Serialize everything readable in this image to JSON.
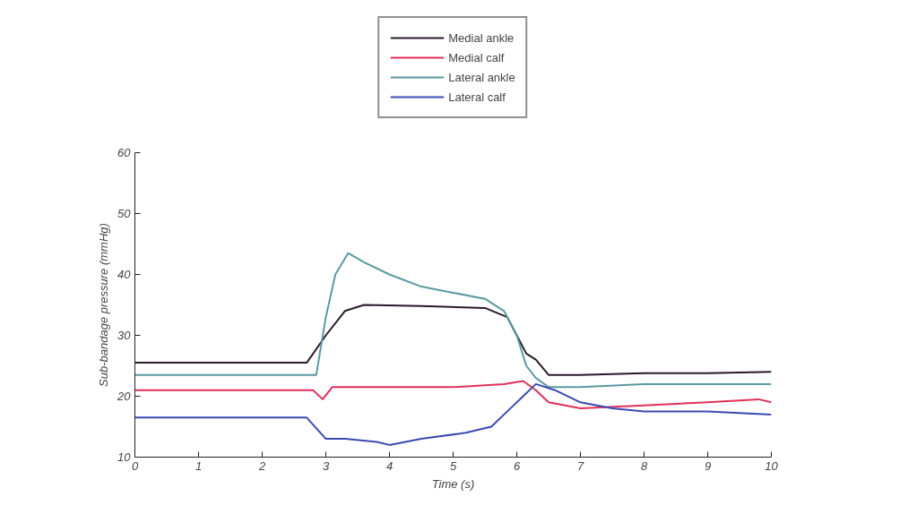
{
  "chart_data": {
    "type": "line",
    "xlabel": "Time (s)",
    "ylabel": "Sub-bandage pressure (mmHg)",
    "xlim": [
      0,
      10
    ],
    "ylim": [
      10,
      60
    ],
    "xticks": [
      0,
      1,
      2,
      3,
      4,
      5,
      6,
      7,
      8,
      9,
      10
    ],
    "yticks": [
      10,
      20,
      30,
      40,
      50,
      60
    ],
    "grid": false,
    "legend": "top",
    "line_style": "solid",
    "marker": "none",
    "series": [
      {
        "name": "Medial ankle",
        "color": "#2a1a2a",
        "x": [
          0,
          1,
          2,
          2.7,
          3.0,
          3.3,
          3.6,
          4.5,
          5.5,
          5.85,
          6.0,
          6.15,
          6.3,
          6.5,
          7,
          8,
          9,
          10
        ],
        "values": [
          25.5,
          25.5,
          25.5,
          25.5,
          30,
          34,
          35,
          34.8,
          34.5,
          33,
          30,
          27,
          26,
          23.5,
          23.5,
          23.8,
          23.8,
          24
        ]
      },
      {
        "name": "Medial calf",
        "color": "#e0305a",
        "x": [
          0,
          1,
          2,
          2.8,
          2.95,
          3.1,
          4,
          5,
          5.8,
          6.1,
          6.3,
          6.5,
          7,
          8,
          9,
          9.8,
          10
        ],
        "values": [
          21,
          21,
          21,
          21,
          19.5,
          21.5,
          21.5,
          21.5,
          22,
          22.5,
          21,
          19,
          18,
          18.5,
          19,
          19.5,
          19
        ]
      },
      {
        "name": "Lateral ankle",
        "color": "#5a9aa0",
        "x": [
          0,
          1,
          2,
          2.85,
          3.0,
          3.15,
          3.35,
          3.6,
          4.0,
          4.5,
          5.0,
          5.5,
          5.8,
          6.0,
          6.15,
          6.3,
          6.5,
          7,
          8,
          9,
          10
        ],
        "values": [
          23.5,
          23.5,
          23.5,
          23.5,
          33,
          40,
          43.5,
          42,
          40,
          38,
          37,
          36,
          34,
          30,
          25,
          23,
          21.5,
          21.5,
          22,
          22,
          22
        ]
      },
      {
        "name": "Lateral calf",
        "color": "#3a4ab0",
        "x": [
          0,
          1,
          2,
          2.7,
          3.0,
          3.3,
          3.8,
          4.0,
          4.5,
          5.2,
          5.6,
          5.9,
          6.1,
          6.3,
          6.6,
          7,
          7.5,
          8,
          9,
          10
        ],
        "values": [
          16.5,
          16.5,
          16.5,
          16.5,
          13,
          13,
          12.5,
          12,
          13,
          14,
          15,
          18,
          20,
          22,
          21,
          19,
          18,
          17.5,
          17.5,
          17
        ]
      }
    ]
  }
}
